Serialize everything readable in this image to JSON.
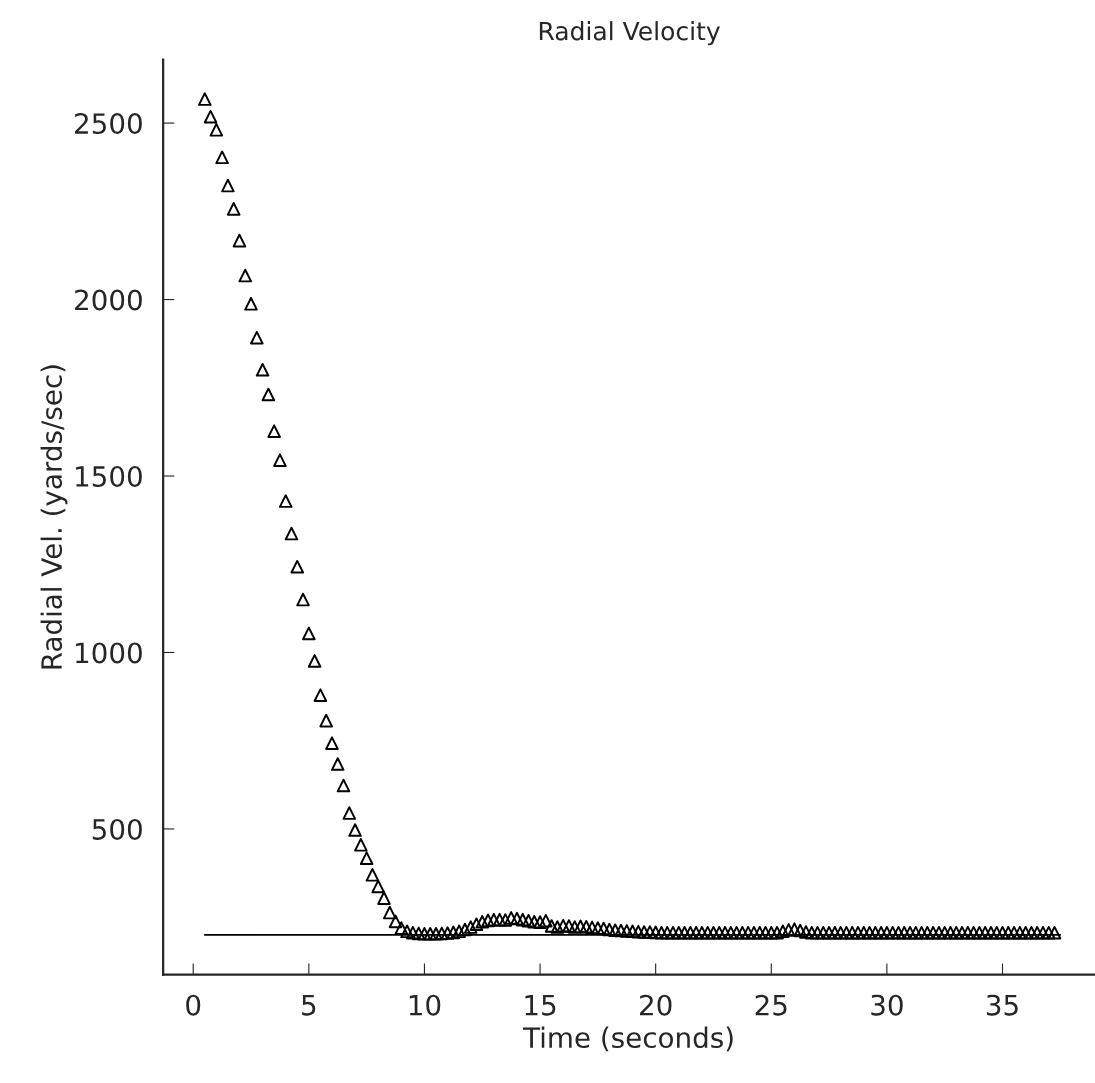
{
  "chart_data": {
    "type": "scatter",
    "title": "Radial Velocity",
    "xlabel": "Time (seconds)",
    "ylabel": "Radial Vel. (yards/sec)",
    "xlim": [
      -1.3,
      39
    ],
    "ylim": [
      87,
      2680
    ],
    "xticks": [
      0,
      5,
      10,
      15,
      20,
      25,
      30,
      35
    ],
    "yticks": [
      500,
      1000,
      1500,
      2000,
      2500
    ],
    "grid": false,
    "legend": false,
    "series": [
      {
        "type": "line",
        "color": "#000000",
        "marker": "none",
        "line_style": "solid",
        "x": [
          0.5,
          37.5
        ],
        "values": [
          200,
          200
        ]
      },
      {
        "color": "#000000",
        "marker": "triangle",
        "x": [
          0.5,
          0.75,
          1,
          1.25,
          1.5,
          1.75,
          2,
          2.25,
          2.5,
          2.75,
          3,
          3.25,
          3.5,
          3.75,
          4,
          4.25,
          4.5,
          4.75,
          5,
          5.25,
          5.5,
          5.75,
          6,
          6.25,
          6.5,
          6.75,
          7,
          7.25,
          7.5,
          7.75,
          8,
          8.25,
          8.5,
          8.75,
          9,
          9.25,
          9.5,
          9.75,
          10,
          10.25,
          10.5,
          10.75,
          11,
          11.25,
          11.5,
          11.75,
          12,
          12.25,
          12.5,
          12.75,
          13,
          13.25,
          13.5,
          13.75,
          14,
          14.25,
          14.5,
          14.75,
          15,
          15.25,
          15.5,
          15.75,
          16,
          16.25,
          16.5,
          16.75,
          17,
          17.25,
          17.5,
          17.75,
          18,
          18.25,
          18.5,
          18.75,
          19,
          19.25,
          19.5,
          19.75,
          20,
          20.25,
          20.5,
          20.75,
          21,
          21.25,
          21.5,
          21.75,
          22,
          22.25,
          22.5,
          22.75,
          23,
          23.25,
          23.5,
          23.75,
          24,
          24.25,
          24.5,
          24.75,
          25,
          25.25,
          25.5,
          25.75,
          26,
          26.25,
          26.5,
          26.75,
          27,
          27.25,
          27.5,
          27.75,
          28,
          28.25,
          28.5,
          28.75,
          29,
          29.25,
          29.5,
          29.75,
          30,
          30.25,
          30.5,
          30.75,
          31,
          31.25,
          31.5,
          31.75,
          32,
          32.25,
          32.5,
          32.75,
          33,
          33.25,
          33.5,
          33.75,
          34,
          34.25,
          34.5,
          34.75,
          35,
          35.25,
          35.5,
          35.75,
          36,
          36.25,
          36.5,
          36.75,
          37,
          37.25
        ],
        "values": [
          2568,
          2518,
          2481,
          2403,
          2323,
          2257,
          2167,
          2068,
          1988,
          1892,
          1801,
          1731,
          1627,
          1545,
          1429,
          1337,
          1243,
          1150,
          1054,
          976,
          879,
          807,
          743,
          684,
          623,
          545,
          497,
          455,
          417,
          370,
          337,
          304,
          263,
          238,
          219,
          210,
          206,
          204,
          203,
          203,
          203,
          204,
          205,
          207,
          210,
          215,
          222,
          230,
          237,
          241,
          243,
          243,
          242,
          248,
          246,
          243,
          240,
          237,
          236,
          240,
          225,
          222,
          226,
          225,
          222,
          224,
          223,
          221,
          219,
          218,
          215,
          213,
          212,
          211,
          210,
          209,
          208,
          208,
          207,
          206,
          206,
          206,
          206,
          206,
          206,
          206,
          206,
          206,
          206,
          206,
          206,
          206,
          206,
          206,
          206,
          206,
          206,
          206,
          206,
          206,
          210,
          214,
          216,
          212,
          208,
          206,
          206,
          206,
          206,
          206,
          206,
          206,
          206,
          206,
          206,
          206,
          206,
          206,
          206,
          206,
          206,
          206,
          206,
          206,
          206,
          206,
          206,
          206,
          206,
          206,
          206,
          206,
          206,
          206,
          206,
          206,
          206,
          206,
          206,
          206,
          206,
          206,
          206,
          206,
          206,
          206,
          206,
          206
        ]
      }
    ]
  }
}
